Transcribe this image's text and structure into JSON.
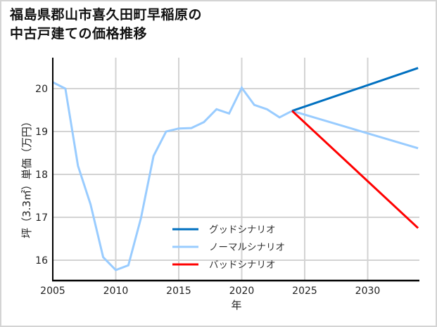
{
  "title": "福島県郡山市喜久田町早稲原の\n中古戸建ての価格推移",
  "chart_data": {
    "type": "line",
    "title": "福島県郡山市喜久田町早稲原の中古戸建ての価格推移",
    "xlabel": "年",
    "ylabel": "坪（3.3㎡）単価（万円）",
    "xlim": [
      2005,
      2034
    ],
    "ylim": [
      15.55,
      20.75
    ],
    "x_ticks": [
      2005,
      2010,
      2015,
      2020,
      2025,
      2030
    ],
    "y_ticks": [
      16,
      17,
      18,
      19,
      20
    ],
    "grid": true,
    "legend_position": "lower center (inside plot)",
    "series": [
      {
        "name": "ノーマルシナリオ",
        "color": "#99ccff",
        "x": [
          2005,
          2006,
          2007,
          2008,
          2009,
          2010,
          2011,
          2012,
          2013,
          2014,
          2015,
          2016,
          2017,
          2018,
          2019,
          2020,
          2021,
          2022,
          2023,
          2024,
          2034
        ],
        "values": [
          20.15,
          20.0,
          18.2,
          17.3,
          16.07,
          15.77,
          15.88,
          16.98,
          18.43,
          19.0,
          19.07,
          19.08,
          19.22,
          19.52,
          19.42,
          20.02,
          19.62,
          19.52,
          19.33,
          19.48,
          18.61
        ]
      },
      {
        "name": "グッドシナリオ",
        "color": "#0070c0",
        "x": [
          2024,
          2034
        ],
        "values": [
          19.48,
          20.48
        ]
      },
      {
        "name": "バッドシナリオ",
        "color": "#ff0000",
        "x": [
          2024,
          2034
        ],
        "values": [
          19.48,
          16.75
        ]
      }
    ]
  },
  "legend": {
    "items": [
      {
        "label": "グッドシナリオ",
        "color": "#0070c0"
      },
      {
        "label": "ノーマルシナリオ",
        "color": "#99ccff"
      },
      {
        "label": "バッドシナリオ",
        "color": "#ff0000"
      }
    ]
  },
  "axes": {
    "xlabel": "年",
    "ylabel": "坪（3.3㎡）単価（万円）",
    "x_tick_labels": [
      "2005",
      "2010",
      "2015",
      "2020",
      "2025",
      "2030"
    ],
    "y_tick_labels": [
      "16",
      "17",
      "18",
      "19",
      "20"
    ]
  }
}
